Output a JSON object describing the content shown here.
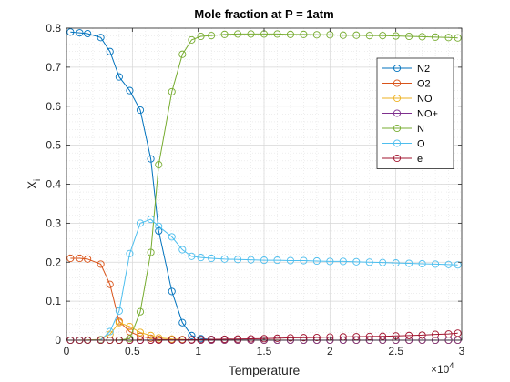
{
  "chart_data": {
    "type": "line",
    "title": "Mole fraction at P = 1atm",
    "xlabel": "Temperature",
    "ylabel": "X",
    "ylabel_subscript": "i",
    "x_exponent_label": "×10",
    "x_exponent_power": "4",
    "xlim": [
      0,
      3
    ],
    "ylim": [
      0,
      0.8
    ],
    "grid": true,
    "minor_grid": true,
    "legend_placement": "top-right",
    "x_ticks": [
      0,
      0.5,
      1,
      1.5,
      2,
      2.5,
      3
    ],
    "x_tick_labels": [
      "0",
      "0.5",
      "1",
      "1.5",
      "2",
      "2.5",
      "3"
    ],
    "y_ticks": [
      0,
      0.1,
      0.2,
      0.3,
      0.4,
      0.5,
      0.6,
      0.7,
      0.8
    ],
    "y_tick_labels": [
      "0",
      "0.1",
      "0.2",
      "0.3",
      "0.4",
      "0.5",
      "0.6",
      "0.7",
      "0.8"
    ],
    "x": [
      0.03,
      0.1,
      0.16,
      0.26,
      0.33,
      0.4,
      0.48,
      0.56,
      0.64,
      0.7,
      0.8,
      0.88,
      0.95,
      1.02,
      1.1,
      1.2,
      1.3,
      1.4,
      1.5,
      1.6,
      1.7,
      1.8,
      1.9,
      2.0,
      2.1,
      2.2,
      2.3,
      2.4,
      2.5,
      2.6,
      2.7,
      2.8,
      2.9,
      2.97
    ],
    "series": [
      {
        "name": "N2",
        "color": "#0072BD",
        "values": [
          0.79,
          0.788,
          0.786,
          0.776,
          0.74,
          0.675,
          0.64,
          0.59,
          0.465,
          0.28,
          0.125,
          0.045,
          0.012,
          0.004,
          0.002,
          0.001,
          0.0005,
          0.0003,
          0.0002,
          0.0001,
          0.0001,
          0,
          0,
          0,
          0,
          0,
          0,
          0,
          0,
          0,
          0,
          0,
          0,
          0
        ]
      },
      {
        "name": "O2",
        "color": "#D95319",
        "values": [
          0.21,
          0.21,
          0.208,
          0.195,
          0.143,
          0.048,
          0.022,
          0.01,
          0.005,
          0.002,
          0.001,
          0.0005,
          0.0002,
          0.0001,
          0,
          0,
          0,
          0,
          0,
          0,
          0,
          0,
          0,
          0,
          0,
          0,
          0,
          0,
          0,
          0,
          0,
          0,
          0,
          0
        ]
      },
      {
        "name": "NO",
        "color": "#EDB120",
        "values": [
          0,
          0.0001,
          0.0005,
          0.002,
          0.015,
          0.045,
          0.035,
          0.02,
          0.012,
          0.006,
          0.003,
          0.002,
          0.001,
          0.001,
          0.0008,
          0.0005,
          0.0004,
          0.0003,
          0.0002,
          0.0002,
          0.0001,
          0.0001,
          0.0001,
          0.0001,
          0,
          0,
          0,
          0,
          0,
          0,
          0,
          0,
          0,
          0
        ]
      },
      {
        "name": "NO+",
        "color": "#7E2F8E",
        "values": [
          0,
          0,
          0,
          0,
          0,
          0,
          0,
          0.0001,
          0.0002,
          0.0003,
          0.0004,
          0.0004,
          0.0004,
          0.0003,
          0.0003,
          0.0003,
          0.0002,
          0.0002,
          0.0002,
          0.0001,
          0.0001,
          0.0001,
          0.0001,
          0.0001,
          0.0001,
          0,
          0,
          0,
          0,
          0,
          0,
          0,
          0,
          0
        ]
      },
      {
        "name": "N",
        "color": "#77AC30",
        "values": [
          0,
          0,
          0,
          0,
          0,
          0.0003,
          0.004,
          0.073,
          0.225,
          0.45,
          0.637,
          0.733,
          0.77,
          0.779,
          0.781,
          0.784,
          0.785,
          0.785,
          0.785,
          0.785,
          0.784,
          0.784,
          0.783,
          0.783,
          0.782,
          0.782,
          0.781,
          0.781,
          0.78,
          0.779,
          0.778,
          0.777,
          0.776,
          0.775
        ]
      },
      {
        "name": "O",
        "color": "#4DBEEE",
        "values": [
          0,
          0,
          0,
          0.001,
          0.022,
          0.075,
          0.222,
          0.3,
          0.31,
          0.292,
          0.265,
          0.232,
          0.215,
          0.212,
          0.21,
          0.208,
          0.207,
          0.206,
          0.205,
          0.205,
          0.204,
          0.204,
          0.203,
          0.202,
          0.202,
          0.201,
          0.2,
          0.199,
          0.198,
          0.197,
          0.196,
          0.195,
          0.194,
          0.193
        ]
      },
      {
        "name": "e",
        "color": "#A2142F",
        "values": [
          0,
          0,
          0,
          0,
          0,
          0,
          0,
          0,
          0.0001,
          0.0003,
          0.0005,
          0.001,
          0.0012,
          0.0015,
          0.002,
          0.0025,
          0.003,
          0.0035,
          0.004,
          0.005,
          0.006,
          0.0065,
          0.007,
          0.008,
          0.0085,
          0.009,
          0.0095,
          0.01,
          0.011,
          0.012,
          0.013,
          0.015,
          0.016,
          0.018
        ]
      }
    ]
  }
}
